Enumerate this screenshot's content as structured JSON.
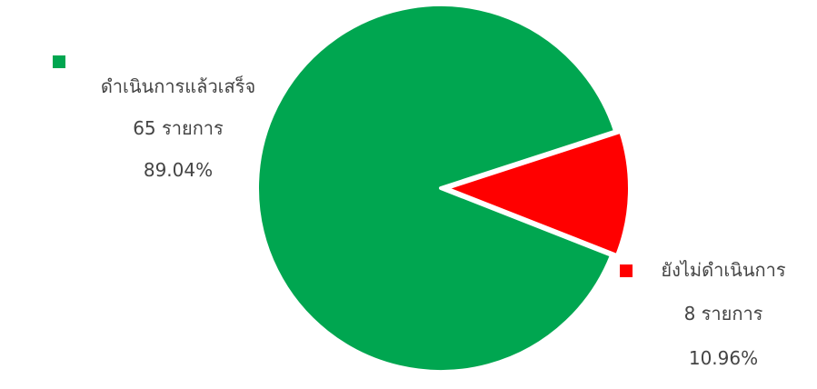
{
  "chart_data": {
    "type": "pie",
    "title": "",
    "unit": "รายการ",
    "slices": [
      {
        "label": "ดำเนินการแล้วเสร็จ",
        "value": 65,
        "count_label": "65 รายการ",
        "percent_label": "89.04%",
        "color": "#00a650"
      },
      {
        "label": "ยังไม่ดำเนินการ",
        "value": 8,
        "count_label": "8 รายการ",
        "percent_label": "10.96%",
        "color": "#ff0000"
      }
    ],
    "legend": "inline-labels-beside-slices",
    "background": "#ffffff"
  }
}
